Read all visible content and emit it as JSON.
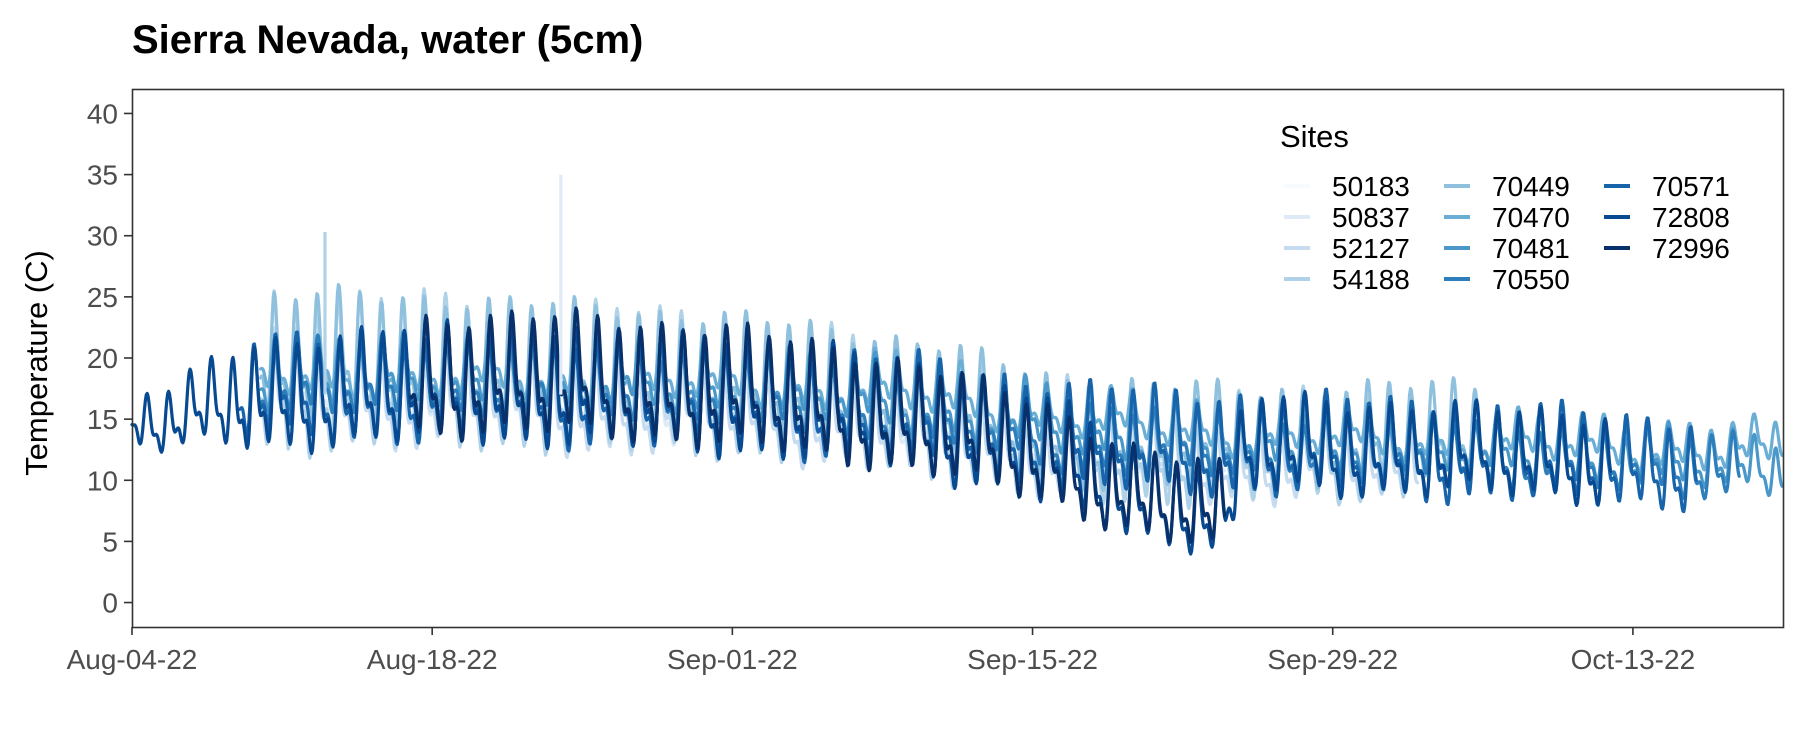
{
  "chart_data": {
    "type": "line",
    "title": "Sierra Nevada, water (5cm)",
    "xlabel": "",
    "ylabel": "Temperature (C)",
    "ylim": [
      -2,
      42
    ],
    "xlim": [
      "2022-08-04",
      "2022-10-20"
    ],
    "y_ticks": [
      0,
      5,
      10,
      15,
      20,
      25,
      30,
      35,
      40
    ],
    "x_ticks": [
      {
        "date": "2022-08-04",
        "label": "Aug-04-22"
      },
      {
        "date": "2022-08-18",
        "label": "Aug-18-22"
      },
      {
        "date": "2022-09-01",
        "label": "Sep-01-22"
      },
      {
        "date": "2022-09-15",
        "label": "Sep-15-22"
      },
      {
        "date": "2022-09-29",
        "label": "Sep-29-22"
      },
      {
        "date": "2022-10-13",
        "label": "Oct-13-22"
      }
    ],
    "grid": false,
    "legend": {
      "title": "Sites",
      "placement": "top-right"
    },
    "series": [
      {
        "name": "50183",
        "color": "#f7fbff",
        "start": "2022-08-10",
        "end": "2022-09-24",
        "t": [
          "2022-08-10",
          "2022-08-20",
          "2022-09-01",
          "2022-09-10",
          "2022-09-16",
          "2022-09-24"
        ],
        "mean": [
          18,
          17.5,
          16.5,
          15,
          13,
          12
        ],
        "amp": [
          4,
          4,
          3.5,
          3.5,
          3,
          3
        ]
      },
      {
        "name": "50837",
        "color": "#deebf7",
        "start": "2022-08-10",
        "end": "2022-09-24",
        "t": [
          "2022-08-10",
          "2022-08-20",
          "2022-09-01",
          "2022-09-10",
          "2022-09-16",
          "2022-09-24"
        ],
        "mean": [
          17.5,
          17,
          16,
          14.5,
          12.5,
          11.5
        ],
        "amp": [
          4.5,
          4.5,
          4,
          3.5,
          3.5,
          3
        ]
      },
      {
        "name": "52127",
        "color": "#c6dbef",
        "start": "2022-08-10",
        "end": "2022-10-03",
        "t": [
          "2022-08-10",
          "2022-08-20",
          "2022-09-01",
          "2022-09-10",
          "2022-09-16",
          "2022-09-25",
          "2022-10-03"
        ],
        "mean": [
          17,
          16.5,
          15.5,
          14,
          12,
          11,
          11
        ],
        "amp": [
          5,
          5,
          4.5,
          4,
          4,
          3.5,
          3.5
        ]
      },
      {
        "name": "54188",
        "color": "#b0d2e8",
        "start": "2022-08-10",
        "end": "2022-10-03",
        "t": [
          "2022-08-10",
          "2022-08-20",
          "2022-09-01",
          "2022-09-10",
          "2022-09-16",
          "2022-09-25",
          "2022-10-03"
        ],
        "mean": [
          18,
          18,
          17,
          15,
          12.5,
          12,
          12.5
        ],
        "amp": [
          7.5,
          7,
          6.5,
          6,
          5.5,
          5,
          5
        ]
      },
      {
        "name": "70449",
        "color": "#8fc1de",
        "start": "2022-08-10",
        "end": "2022-10-06",
        "t": [
          "2022-08-10",
          "2022-08-20",
          "2022-09-01",
          "2022-09-10",
          "2022-09-16",
          "2022-09-25",
          "2022-10-06"
        ],
        "mean": [
          19.5,
          19,
          18,
          16.5,
          13.5,
          13,
          13.5
        ],
        "amp": [
          6,
          6,
          5.5,
          5,
          5,
          4.5,
          4.5
        ]
      },
      {
        "name": "70470",
        "color": "#6aaed6",
        "start": "2022-08-10",
        "end": "2022-10-20",
        "t": [
          "2022-08-10",
          "2022-08-20",
          "2022-09-01",
          "2022-09-10",
          "2022-09-16",
          "2022-09-25",
          "2022-10-05",
          "2022-10-20"
        ],
        "mean": [
          19,
          19,
          18.5,
          17.5,
          15.5,
          14,
          13.5,
          12.5
        ],
        "amp": [
          2.5,
          2.5,
          2.5,
          2.5,
          2,
          2,
          2,
          2
        ]
      },
      {
        "name": "70481",
        "color": "#4a98c9",
        "start": "2022-08-10",
        "end": "2022-10-20",
        "t": [
          "2022-08-10",
          "2022-08-20",
          "2022-09-01",
          "2022-09-10",
          "2022-09-16",
          "2022-09-25",
          "2022-10-05",
          "2022-10-20"
        ],
        "mean": [
          18.5,
          18.5,
          18,
          16.5,
          14.5,
          13,
          12.5,
          11
        ],
        "amp": [
          3,
          3,
          3,
          3,
          3,
          3,
          2.5,
          2.5
        ]
      },
      {
        "name": "70550",
        "color": "#2e7ebc",
        "start": "2022-08-10",
        "end": "2022-10-18",
        "t": [
          "2022-08-10",
          "2022-08-20",
          "2022-09-01",
          "2022-09-10",
          "2022-09-16",
          "2022-09-25",
          "2022-10-05",
          "2022-10-18"
        ],
        "mean": [
          18,
          18,
          17,
          15.5,
          13.5,
          12.5,
          12,
          11
        ],
        "amp": [
          3.5,
          3.5,
          3.5,
          3.5,
          3,
          3,
          3,
          3
        ]
      },
      {
        "name": "70571",
        "color": "#1764ab",
        "start": "2022-08-09",
        "end": "2022-10-16",
        "t": [
          "2022-08-09",
          "2022-08-20",
          "2022-09-01",
          "2022-09-10",
          "2022-09-16",
          "2022-09-25",
          "2022-10-05",
          "2022-10-16"
        ],
        "mean": [
          17,
          17,
          16.5,
          15,
          13,
          12.5,
          12,
          11
        ],
        "amp": [
          4.5,
          5,
          5,
          5,
          5,
          4.5,
          4.5,
          4
        ]
      },
      {
        "name": "72808",
        "color": "#084a92",
        "start": "2022-08-04",
        "end": "2022-10-12",
        "t": [
          "2022-08-04",
          "2022-08-06",
          "2022-08-08",
          "2022-08-10",
          "2022-08-20",
          "2022-09-01",
          "2022-09-10",
          "2022-09-16",
          "2022-09-20",
          "2022-09-24",
          "2022-09-25",
          "2022-10-05",
          "2022-10-12"
        ],
        "mean": [
          15,
          14.5,
          16,
          16.5,
          17.5,
          16.5,
          14.5,
          11.5,
          8.5,
          7,
          12.5,
          12,
          11.5
        ],
        "amp": [
          2.5,
          3,
          4,
          5,
          5.5,
          5.5,
          5,
          5,
          4,
          4,
          4.5,
          4,
          4
        ]
      },
      {
        "name": "72996",
        "color": "#08306b",
        "start": "2022-08-17",
        "end": "2022-09-24",
        "t": [
          "2022-08-17",
          "2022-08-25",
          "2022-09-01",
          "2022-09-10",
          "2022-09-16",
          "2022-09-20",
          "2022-09-24"
        ],
        "mean": [
          18,
          18,
          17,
          14.5,
          11.5,
          8.5,
          7
        ],
        "amp": [
          5.5,
          5.5,
          5.5,
          5,
          4.5,
          4,
          4
        ]
      }
    ],
    "spikes": [
      {
        "series": "54188",
        "date": "2022-08-13",
        "value": 30.3
      },
      {
        "series": "50837",
        "date": "2022-08-24",
        "value": 35
      }
    ]
  }
}
